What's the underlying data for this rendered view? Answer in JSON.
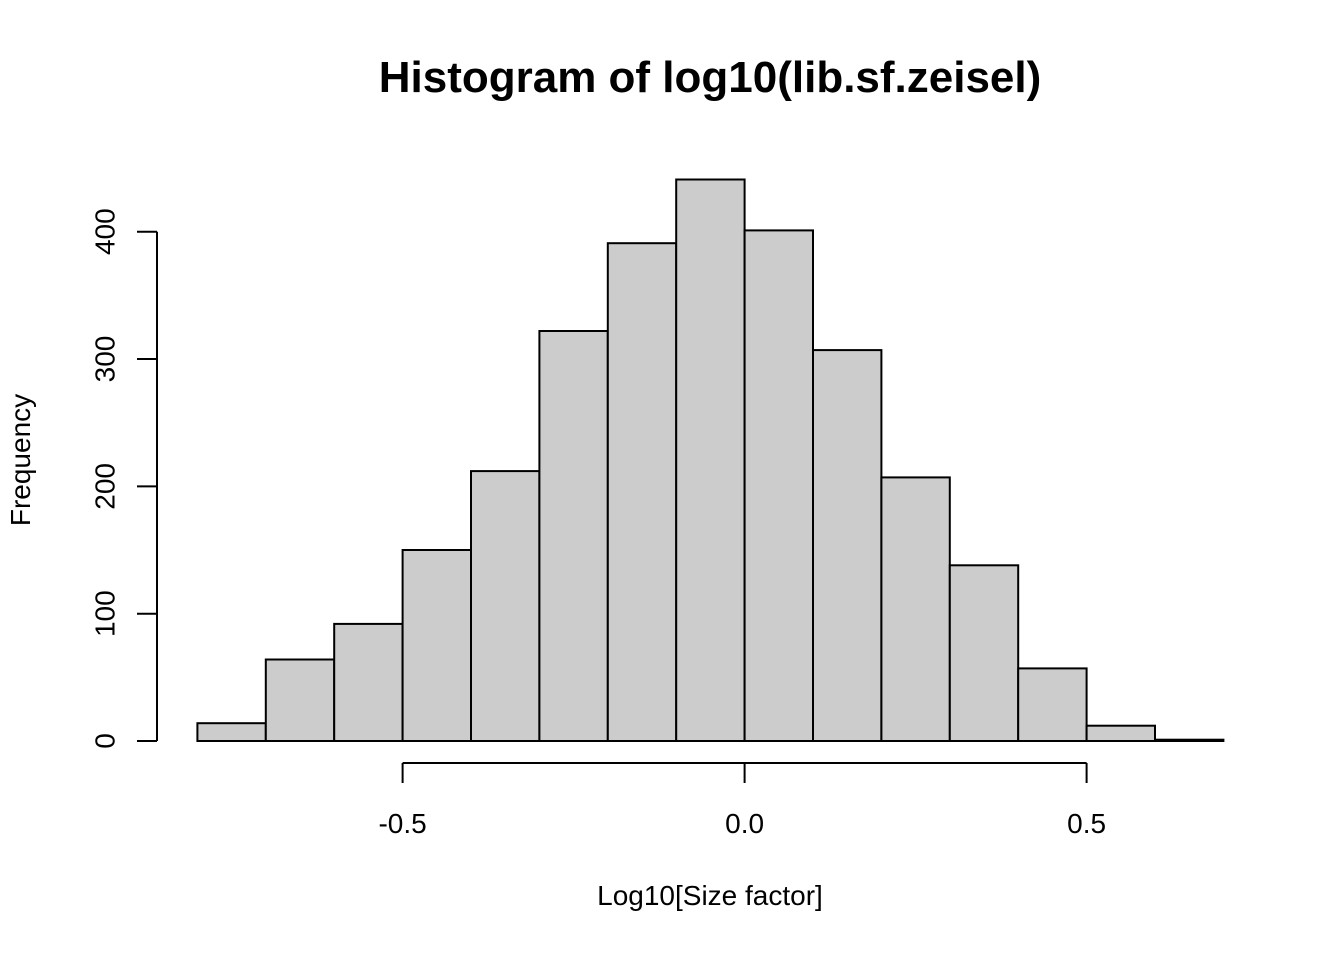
{
  "chart_data": {
    "type": "bar",
    "subtype": "histogram",
    "title": "Histogram of log10(lib.sf.zeisel)",
    "xlabel": "Log10[Size factor]",
    "ylabel": "Frequency",
    "bin_start": -0.8,
    "bin_width": 0.1,
    "bin_edges": [
      -0.8,
      -0.7,
      -0.6,
      -0.5,
      -0.4,
      -0.3,
      -0.2,
      -0.1,
      0.0,
      0.1,
      0.2,
      0.3,
      0.4,
      0.5,
      0.6,
      0.7
    ],
    "frequencies": [
      14,
      64,
      92,
      150,
      212,
      322,
      391,
      441,
      401,
      307,
      207,
      138,
      57,
      12,
      1
    ],
    "x_ticks": [
      {
        "value": -0.5,
        "label": "-0.5"
      },
      {
        "value": 0.0,
        "label": "0.0"
      },
      {
        "value": 0.5,
        "label": "0.5"
      }
    ],
    "y_ticks": [
      {
        "value": 0,
        "label": "0"
      },
      {
        "value": 100,
        "label": "100"
      },
      {
        "value": 200,
        "label": "200"
      },
      {
        "value": 300,
        "label": "300"
      },
      {
        "value": 400,
        "label": "400"
      }
    ],
    "xlim": [
      -0.5,
      0.5
    ],
    "ylim": [
      0,
      400
    ],
    "grid": false,
    "legend": "none",
    "bar_fill": "#cccccc",
    "bar_stroke": "#000000",
    "axis_color": "#000000",
    "background": "#ffffff"
  }
}
